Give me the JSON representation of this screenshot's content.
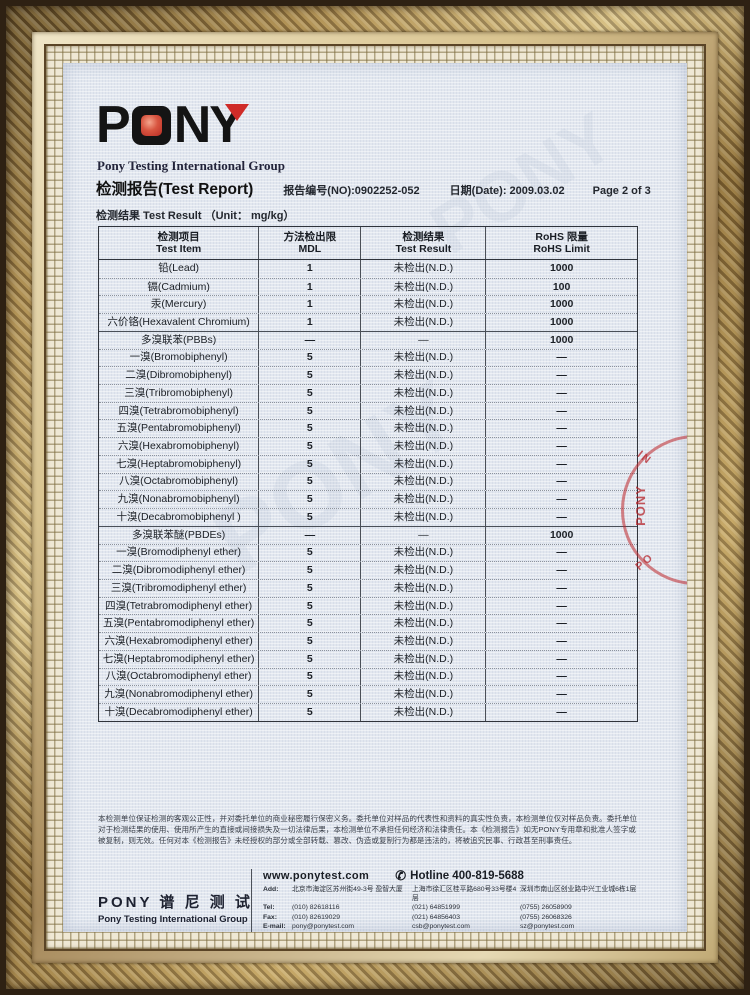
{
  "logo": {
    "brand_p": "P",
    "brand_n": "N",
    "brand_y": "Y",
    "red_accent": "#cf2b28",
    "black": "#141414",
    "subtitle": "Pony Testing International Group"
  },
  "header": {
    "title_zh": "检测报告",
    "title_en": "(Test Report)",
    "report_no": "报告编号(NO):0902252-052",
    "date": "日期(Date): 2009.03.02",
    "page": "Page 2 of 3",
    "result_line": "检测结果 Test Result （Unit： mg/kg）"
  },
  "table": {
    "headers": [
      {
        "zh": "检测项目",
        "en": "Test Item"
      },
      {
        "zh": "方法检出限",
        "en": "MDL"
      },
      {
        "zh": "检测结果",
        "en": "Test Result"
      },
      {
        "zh": "RoHS 限量",
        "en": "RoHS Limit"
      }
    ],
    "rows": [
      {
        "item": "铅(Lead)",
        "mdl": "1",
        "result": "未检出(N.D.)",
        "limit": "1000",
        "group": false
      },
      {
        "item": "镉(Cadmium)",
        "mdl": "1",
        "result": "未检出(N.D.)",
        "limit": "100",
        "group": false
      },
      {
        "item": "汞(Mercury)",
        "mdl": "1",
        "result": "未检出(N.D.)",
        "limit": "1000",
        "group": false
      },
      {
        "item": "六价铬(Hexavalent Chromium)",
        "mdl": "1",
        "result": "未检出(N.D.)",
        "limit": "1000",
        "group": false
      },
      {
        "item": "多溴联苯(PBBs)",
        "mdl": "—",
        "result": "—",
        "limit": "1000",
        "group": true
      },
      {
        "item": "一溴(Bromobiphenyl)",
        "mdl": "5",
        "result": "未检出(N.D.)",
        "limit": "—",
        "group": false
      },
      {
        "item": "二溴(Dibromobiphenyl)",
        "mdl": "5",
        "result": "未检出(N.D.)",
        "limit": "—",
        "group": false
      },
      {
        "item": "三溴(Tribromobiphenyl)",
        "mdl": "5",
        "result": "未检出(N.D.)",
        "limit": "—",
        "group": false
      },
      {
        "item": "四溴(Tetrabromobiphenyl)",
        "mdl": "5",
        "result": "未检出(N.D.)",
        "limit": "—",
        "group": false
      },
      {
        "item": "五溴(Pentabromobiphenyl)",
        "mdl": "5",
        "result": "未检出(N.D.)",
        "limit": "—",
        "group": false
      },
      {
        "item": "六溴(Hexabromobiphenyl)",
        "mdl": "5",
        "result": "未检出(N.D.)",
        "limit": "—",
        "group": false
      },
      {
        "item": "七溴(Heptabromobiphenyl)",
        "mdl": "5",
        "result": "未检出(N.D.)",
        "limit": "—",
        "group": false
      },
      {
        "item": "八溴(Octabromobiphenyl)",
        "mdl": "5",
        "result": "未检出(N.D.)",
        "limit": "—",
        "group": false
      },
      {
        "item": "九溴(Nonabromobiphenyl)",
        "mdl": "5",
        "result": "未检出(N.D.)",
        "limit": "—",
        "group": false
      },
      {
        "item": "十溴(Decabromobiphenyl )",
        "mdl": "5",
        "result": "未检出(N.D.)",
        "limit": "—",
        "group": false
      },
      {
        "item": "多溴联苯醚(PBDEs)",
        "mdl": "—",
        "result": "—",
        "limit": "1000",
        "group": true
      },
      {
        "item": "一溴(Bromodiphenyl ether)",
        "mdl": "5",
        "result": "未检出(N.D.)",
        "limit": "—",
        "group": false
      },
      {
        "item": "二溴(Dibromodiphenyl ether)",
        "mdl": "5",
        "result": "未检出(N.D.)",
        "limit": "—",
        "group": false
      },
      {
        "item": "三溴(Tribromodiphenyl ether)",
        "mdl": "5",
        "result": "未检出(N.D.)",
        "limit": "—",
        "group": false
      },
      {
        "item": "四溴(Tetrabromodiphenyl ether)",
        "mdl": "5",
        "result": "未检出(N.D.)",
        "limit": "—",
        "group": false
      },
      {
        "item": "五溴(Pentabromodiphenyl ether)",
        "mdl": "5",
        "result": "未检出(N.D.)",
        "limit": "—",
        "group": false
      },
      {
        "item": "六溴(Hexabromodiphenyl ether)",
        "mdl": "5",
        "result": "未检出(N.D.)",
        "limit": "—",
        "group": false
      },
      {
        "item": "七溴(Heptabromodiphenyl ether)",
        "mdl": "5",
        "result": "未检出(N.D.)",
        "limit": "—",
        "group": false
      },
      {
        "item": "八溴(Octabromodiphenyl ether)",
        "mdl": "5",
        "result": "未检出(N.D.)",
        "limit": "—",
        "group": false
      },
      {
        "item": "九溴(Nonabromodiphenyl ether)",
        "mdl": "5",
        "result": "未检出(N.D.)",
        "limit": "—",
        "group": false
      },
      {
        "item": "十溴(Decabromodiphenyl ether)",
        "mdl": "5",
        "result": "未检出(N.D.)",
        "limit": "—",
        "group": false
      }
    ]
  },
  "stamp": {
    "arc_text_top": "IN",
    "center_text": "PONY",
    "arc_text_bottom": "PO",
    "color": "#b42026"
  },
  "disclaimer": {
    "lines": [
      "本检测单位保证检测的客观公正性，并对委托单位的商业秘密履行保密义务。委托单位对样品的代表性和资料的真实性负责，本检测单位仅对样品负责。委托单位",
      "对于检测结果的使用、使用所产生的直接或间接损失及一切法律后果，本检测单位不承担任何经济和法律责任。本《检测报告》如无PONY专用章和批准人签字或",
      "被复制，则无效。任何对本《检测报告》未经授权的部分或全部转载、篡改、伪造或复制行为都是违法的，将被追究民事、行政甚至刑事责任。"
    ]
  },
  "footer": {
    "website": "www.ponytest.com",
    "phone_icon": "✆",
    "hotline": "Hotline 400-819-5688",
    "brand_zh": "PONY 谱 尼 测 试",
    "brand_en": "Pony Testing International Group",
    "field_labels": {
      "add": "Add:",
      "tel": "Tel:",
      "fax": "Fax:",
      "email": "E-mail:"
    },
    "locations": [
      {
        "add": "北京市海淀区苏州街49-3号 盈智大厦",
        "tel": "(010) 82618116",
        "fax": "(010) 82619029",
        "email": "pony@ponytest.com"
      },
      {
        "add": "上海市徐汇区桂平路680号33号楼4层",
        "tel": "(021) 64851999",
        "fax": "(021) 64856403",
        "email": "csb@ponytest.com"
      },
      {
        "add": "深圳市南山区创业路中兴工业城6栋1层",
        "tel": "(0755) 26058909",
        "fax": "(0755) 26068326",
        "email": "sz@ponytest.com"
      }
    ]
  },
  "watermark": "PONY"
}
